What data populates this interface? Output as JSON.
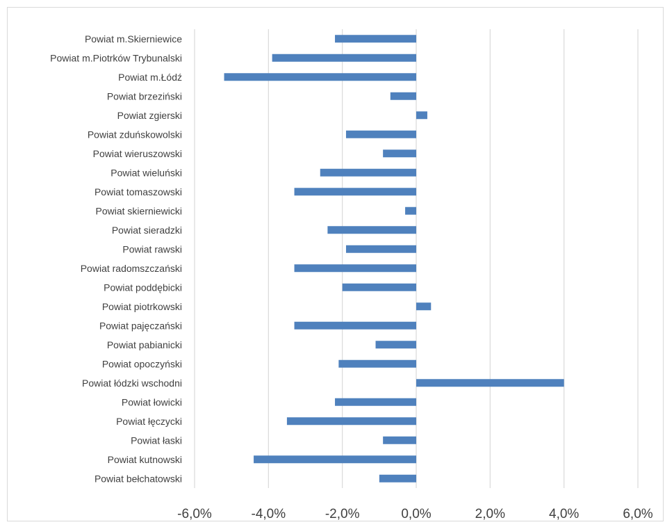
{
  "chart_data": {
    "type": "bar",
    "orientation": "horizontal",
    "categories": [
      "Powiat m.Skierniewice",
      "Powiat m.Piotrków Trybunalski",
      "Powiat m.Łódź",
      "Powiat brzeziński",
      "Powiat zgierski",
      "Powiat zduńskowolski",
      "Powiat wieruszowski",
      "Powiat wieluński",
      "Powiat tomaszowski",
      "Powiat skierniewicki",
      "Powiat sieradzki",
      "Powiat rawski",
      "Powiat radomszczański",
      "Powiat poddębicki",
      "Powiat piotrkowski",
      "Powiat pajęczański",
      "Powiat pabianicki",
      "Powiat opoczyński",
      "Powiat łódzki wschodni",
      "Powiat łowicki",
      "Powiat łęczycki",
      "Powiat łaski",
      "Powiat kutnowski",
      "Powiat bełchatowski"
    ],
    "values": [
      -2.2,
      -3.9,
      -5.2,
      -0.7,
      0.3,
      -1.9,
      -0.9,
      -2.6,
      -3.3,
      -0.3,
      -2.4,
      -1.9,
      -3.3,
      -2.0,
      0.4,
      -3.3,
      -1.1,
      -2.1,
      4.0,
      -2.2,
      -3.5,
      -0.9,
      -4.4,
      -1.0
    ],
    "xlim": [
      -6.0,
      6.0
    ],
    "xticks": [
      -6.0,
      -4.0,
      -2.0,
      0.0,
      2.0,
      4.0,
      6.0
    ],
    "tick_labels": [
      "-6,0%",
      "-4,0%",
      "-2,0%",
      "0,0%",
      "2,0%",
      "4,0%",
      "6,0%"
    ],
    "unit": "%",
    "bar_color": "#4f81bd",
    "grid_color": "#d9d9d9",
    "grid": true,
    "legend": "none",
    "title": ""
  }
}
